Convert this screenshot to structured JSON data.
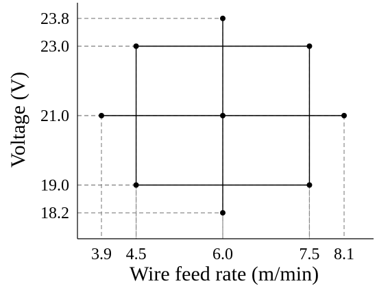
{
  "chart_data": {
    "type": "scatter",
    "title": "",
    "xlabel": "Wire feed rate (m/min)",
    "ylabel": "Voltage (V)",
    "x_ticks": [
      3.9,
      4.5,
      6.0,
      7.5,
      8.1
    ],
    "x_tick_labels": [
      "3.9",
      "4.5",
      "6.0",
      "7.5",
      "8.1"
    ],
    "y_ticks": [
      18.2,
      19.0,
      21.0,
      23.0,
      23.8
    ],
    "y_tick_labels": [
      "18.2",
      "19.0",
      "21.0",
      "23.0",
      "23.8"
    ],
    "points": [
      {
        "x": 4.5,
        "y": 19.0
      },
      {
        "x": 7.5,
        "y": 19.0
      },
      {
        "x": 4.5,
        "y": 23.0
      },
      {
        "x": 7.5,
        "y": 23.0
      },
      {
        "x": 3.9,
        "y": 21.0
      },
      {
        "x": 8.1,
        "y": 21.0
      },
      {
        "x": 6.0,
        "y": 18.2
      },
      {
        "x": 6.0,
        "y": 23.8
      },
      {
        "x": 6.0,
        "y": 21.0
      }
    ],
    "design_lines": [
      [
        [
          4.5,
          19.0
        ],
        [
          7.5,
          19.0
        ]
      ],
      [
        [
          7.5,
          19.0
        ],
        [
          7.5,
          23.0
        ]
      ],
      [
        [
          7.5,
          23.0
        ],
        [
          4.5,
          23.0
        ]
      ],
      [
        [
          4.5,
          23.0
        ],
        [
          4.5,
          19.0
        ]
      ],
      [
        [
          3.9,
          21.0
        ],
        [
          8.1,
          21.0
        ]
      ],
      [
        [
          6.0,
          18.2
        ],
        [
          6.0,
          23.8
        ]
      ]
    ],
    "grid": false,
    "legend": "none"
  }
}
